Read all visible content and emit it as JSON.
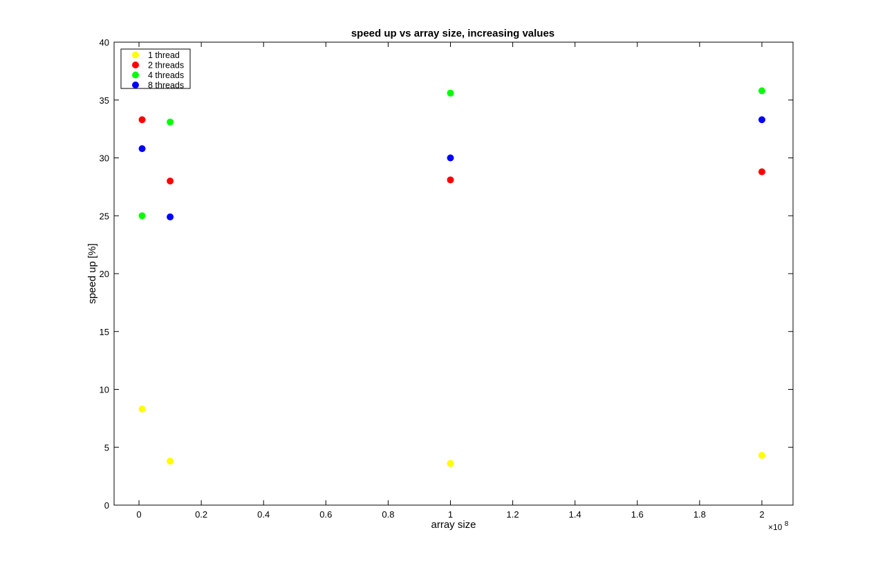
{
  "chart_data": {
    "type": "scatter",
    "title": "speed up vs array size, increasing values",
    "xlabel": "array size",
    "ylabel": "speed up [%]",
    "x_multiplier_label": "×10",
    "x_multiplier_exponent": "8",
    "xlim": [
      -0.08,
      2.1
    ],
    "ylim": [
      0,
      40
    ],
    "x_ticks": [
      0,
      0.2,
      0.4,
      0.6,
      0.8,
      1,
      1.2,
      1.4,
      1.6,
      1.8,
      2
    ],
    "x_tick_labels": [
      "0",
      "0.2",
      "0.4",
      "0.6",
      "0.8",
      "1",
      "1.2",
      "1.4",
      "1.6",
      "1.8",
      "2"
    ],
    "y_ticks": [
      0,
      5,
      10,
      15,
      20,
      25,
      30,
      35,
      40
    ],
    "y_tick_labels": [
      "0",
      "5",
      "10",
      "15",
      "20",
      "25",
      "30",
      "35",
      "40"
    ],
    "grid": false,
    "legend_position": "top-left",
    "series": [
      {
        "name": "1 thread",
        "color": "#ffff00",
        "x": [
          0.01,
          0.1,
          1,
          2
        ],
        "y": [
          8.3,
          3.8,
          3.6,
          4.3
        ]
      },
      {
        "name": "2 threads",
        "color": "#ff0000",
        "x": [
          0.01,
          0.1,
          1,
          2
        ],
        "y": [
          33.3,
          28.0,
          28.1,
          28.8
        ]
      },
      {
        "name": "4 threads",
        "color": "#00ff00",
        "x": [
          0.01,
          0.1,
          1,
          2
        ],
        "y": [
          25.0,
          33.1,
          35.6,
          35.8
        ]
      },
      {
        "name": "8 threads",
        "color": "#0000ff",
        "x": [
          0.01,
          0.1,
          1,
          2
        ],
        "y": [
          30.8,
          24.9,
          30.0,
          33.3
        ]
      }
    ]
  }
}
